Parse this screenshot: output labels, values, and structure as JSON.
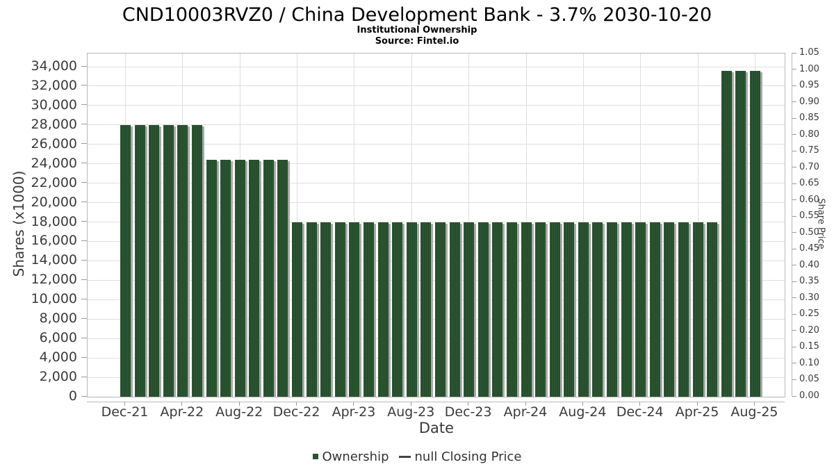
{
  "chart_data": {
    "type": "bar",
    "title": "CND10003RVZ0 / China Development Bank - 3.7% 2030-10-20",
    "subtitle": "Institutional Ownership",
    "source": "Source: Fintel.io",
    "xlabel": "Date",
    "ylabel_left": "Shares (x1000)",
    "ylabel_right": "Share Price",
    "grid": true,
    "legend_position": "bottom-center",
    "bar_color": "#2b5532",
    "categories": [
      "Dec-21",
      "Jan-22",
      "Feb-22",
      "Mar-22",
      "Apr-22",
      "May-22",
      "Jun-22",
      "Jul-22",
      "Aug-22",
      "Sep-22",
      "Oct-22",
      "Nov-22",
      "Dec-22",
      "Jan-23",
      "Feb-23",
      "Mar-23",
      "Apr-23",
      "May-23",
      "Jun-23",
      "Jul-23",
      "Aug-23",
      "Sep-23",
      "Oct-23",
      "Nov-23",
      "Dec-23",
      "Jan-24",
      "Feb-24",
      "Mar-24",
      "Apr-24",
      "May-24",
      "Jun-24",
      "Jul-24",
      "Aug-24",
      "Sep-24",
      "Oct-24",
      "Nov-24",
      "Dec-24",
      "Jan-25",
      "Feb-25",
      "Mar-25",
      "Apr-25",
      "May-25",
      "Jun-25",
      "Jul-25",
      "Aug-25"
    ],
    "series": [
      {
        "name": "Ownership",
        "unit": "shares x1000",
        "values": [
          28000,
          28000,
          28000,
          28000,
          28000,
          28000,
          24400,
          24400,
          24400,
          24400,
          24400,
          24400,
          18000,
          18000,
          18000,
          18000,
          18000,
          18000,
          18000,
          18000,
          18000,
          18000,
          18000,
          18000,
          18000,
          18000,
          18000,
          18000,
          18000,
          18000,
          18000,
          18000,
          18000,
          18000,
          18000,
          18000,
          18000,
          18000,
          18000,
          18000,
          18000,
          18000,
          33600,
          33600,
          33600
        ]
      }
    ],
    "closing_price_series": {
      "name": "null Closing Price",
      "values": null
    },
    "ylim_left": [
      0,
      35360
    ],
    "ylim_right": [
      0,
      1.05
    ],
    "yticks_left_labels": [
      "0",
      "2,000",
      "4,000",
      "6,000",
      "8,000",
      "10,000",
      "12,000",
      "14,000",
      "16,000",
      "18,000",
      "20,000",
      "22,000",
      "24,000",
      "26,000",
      "28,000",
      "30,000",
      "32,000",
      "34,000"
    ],
    "yticks_right_labels": [
      "0.00",
      "0.05",
      "0.10",
      "0.15",
      "0.20",
      "0.25",
      "0.30",
      "0.35",
      "0.40",
      "0.45",
      "0.50",
      "0.55",
      "0.60",
      "0.65",
      "0.70",
      "0.75",
      "0.80",
      "0.85",
      "0.90",
      "0.95",
      "1.00",
      "1.05"
    ],
    "x_tick_labels": [
      "Dec-21",
      "Apr-22",
      "Aug-22",
      "Dec-22",
      "Apr-23",
      "Aug-23",
      "Dec-23",
      "Apr-24",
      "Aug-24",
      "Dec-24",
      "Apr-25",
      "Aug-25"
    ],
    "x_tick_every": 4,
    "legend": {
      "ownership_label": "Ownership",
      "closing_price_label": "null Closing Price"
    }
  }
}
